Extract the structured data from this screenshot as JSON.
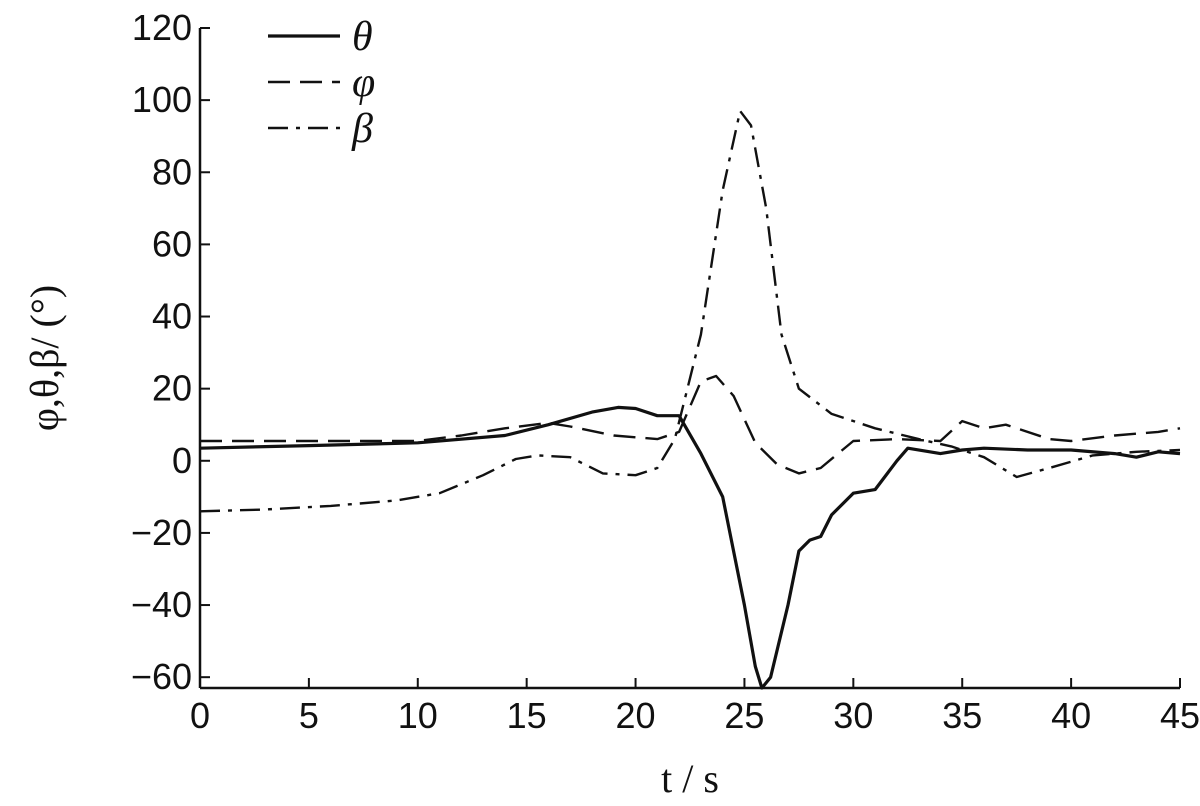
{
  "chart_data": {
    "type": "line",
    "xlabel": "t / s",
    "ylabel": "φ,θ,β/ (°)",
    "xlim": [
      0,
      45
    ],
    "ylim": [
      -63,
      120
    ],
    "xticks": [
      0,
      5,
      10,
      15,
      20,
      25,
      30,
      35,
      40,
      45
    ],
    "yticks": [
      -60,
      -40,
      -20,
      0,
      20,
      40,
      60,
      80,
      100,
      120
    ],
    "grid": false,
    "legend_position": "top-left",
    "series": [
      {
        "name": "θ",
        "style": "solid",
        "points": [
          [
            0,
            3.5
          ],
          [
            5,
            4.2
          ],
          [
            10,
            5
          ],
          [
            14,
            7
          ],
          [
            16,
            10
          ],
          [
            18,
            13.5
          ],
          [
            19.2,
            14.8
          ],
          [
            20,
            14.5
          ],
          [
            21,
            12.5
          ],
          [
            22,
            12.5
          ],
          [
            23,
            2
          ],
          [
            24,
            -10
          ],
          [
            25,
            -40
          ],
          [
            25.5,
            -57
          ],
          [
            25.8,
            -63
          ],
          [
            26.2,
            -60
          ],
          [
            27,
            -40
          ],
          [
            27.5,
            -25
          ],
          [
            28,
            -22
          ],
          [
            28.5,
            -21
          ],
          [
            29,
            -15
          ],
          [
            29.5,
            -12
          ],
          [
            30,
            -9
          ],
          [
            31,
            -8
          ],
          [
            32,
            0
          ],
          [
            32.5,
            3.5
          ],
          [
            34,
            2
          ],
          [
            35,
            3
          ],
          [
            36,
            3.5
          ],
          [
            38,
            3
          ],
          [
            40,
            3
          ],
          [
            42,
            2
          ],
          [
            43,
            1
          ],
          [
            44,
            2.5
          ],
          [
            45,
            2
          ]
        ]
      },
      {
        "name": "φ",
        "style": "dashed",
        "points": [
          [
            0,
            5.5
          ],
          [
            5,
            5.5
          ],
          [
            10,
            5.5
          ],
          [
            12,
            7
          ],
          [
            14,
            9
          ],
          [
            16,
            10.5
          ],
          [
            17,
            9.5
          ],
          [
            19,
            7
          ],
          [
            21,
            6
          ],
          [
            22,
            8
          ],
          [
            23,
            22
          ],
          [
            23.7,
            23.5
          ],
          [
            24.5,
            18
          ],
          [
            25.5,
            5
          ],
          [
            26.5,
            -1
          ],
          [
            27.5,
            -3.5
          ],
          [
            28.5,
            -2
          ],
          [
            29.5,
            3
          ],
          [
            30,
            5.5
          ],
          [
            32,
            6
          ],
          [
            34,
            5.5
          ],
          [
            35,
            11
          ],
          [
            36,
            9
          ],
          [
            37,
            10
          ],
          [
            39,
            6
          ],
          [
            40,
            5.5
          ],
          [
            42,
            7
          ],
          [
            44,
            8
          ],
          [
            45,
            9
          ]
        ]
      },
      {
        "name": "β",
        "style": "dashdot",
        "points": [
          [
            0,
            -14
          ],
          [
            3,
            -13.5
          ],
          [
            6,
            -12.5
          ],
          [
            9,
            -11
          ],
          [
            11,
            -9
          ],
          [
            13,
            -4
          ],
          [
            14.5,
            0.5
          ],
          [
            15.5,
            1.5
          ],
          [
            17,
            1
          ],
          [
            18.5,
            -3.5
          ],
          [
            20,
            -4
          ],
          [
            21,
            -2
          ],
          [
            21.8,
            6
          ],
          [
            23,
            35
          ],
          [
            24,
            75
          ],
          [
            24.8,
            97
          ],
          [
            25.3,
            93
          ],
          [
            26,
            70
          ],
          [
            26.7,
            35
          ],
          [
            27.5,
            20
          ],
          [
            29,
            13
          ],
          [
            31,
            9
          ],
          [
            33,
            6
          ],
          [
            34.5,
            4
          ],
          [
            36,
            1
          ],
          [
            37.5,
            -4.5
          ],
          [
            39,
            -2
          ],
          [
            41,
            1.5
          ],
          [
            43,
            2.5
          ],
          [
            45,
            3
          ]
        ]
      }
    ]
  }
}
